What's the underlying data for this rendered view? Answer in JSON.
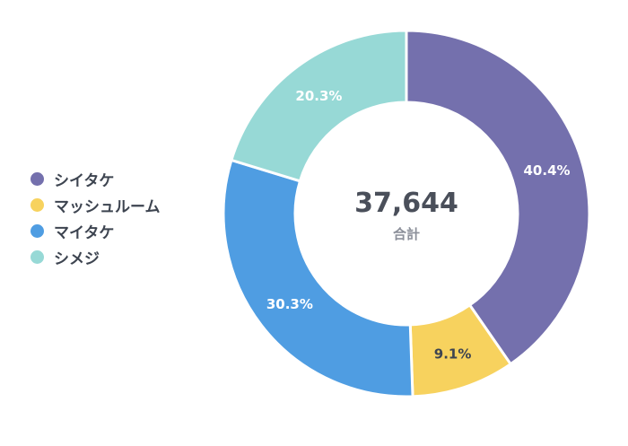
{
  "chart_data": {
    "type": "pie",
    "donut": true,
    "categories": [
      "シイタケ",
      "マッシュルーム",
      "マイタケ",
      "シメジ"
    ],
    "values": [
      40.4,
      9.1,
      30.3,
      20.3
    ],
    "value_labels": [
      "40.4%",
      "9.1%",
      "30.3%",
      "20.3%"
    ],
    "colors": [
      "#7470ad",
      "#f7d25e",
      "#4f9de2",
      "#97d9d6"
    ],
    "label_colors": [
      "#ffffff",
      "#3d4450",
      "#ffffff",
      "#ffffff"
    ],
    "center": {
      "total": "37,644",
      "label": "合計"
    },
    "legend_position": "left"
  }
}
